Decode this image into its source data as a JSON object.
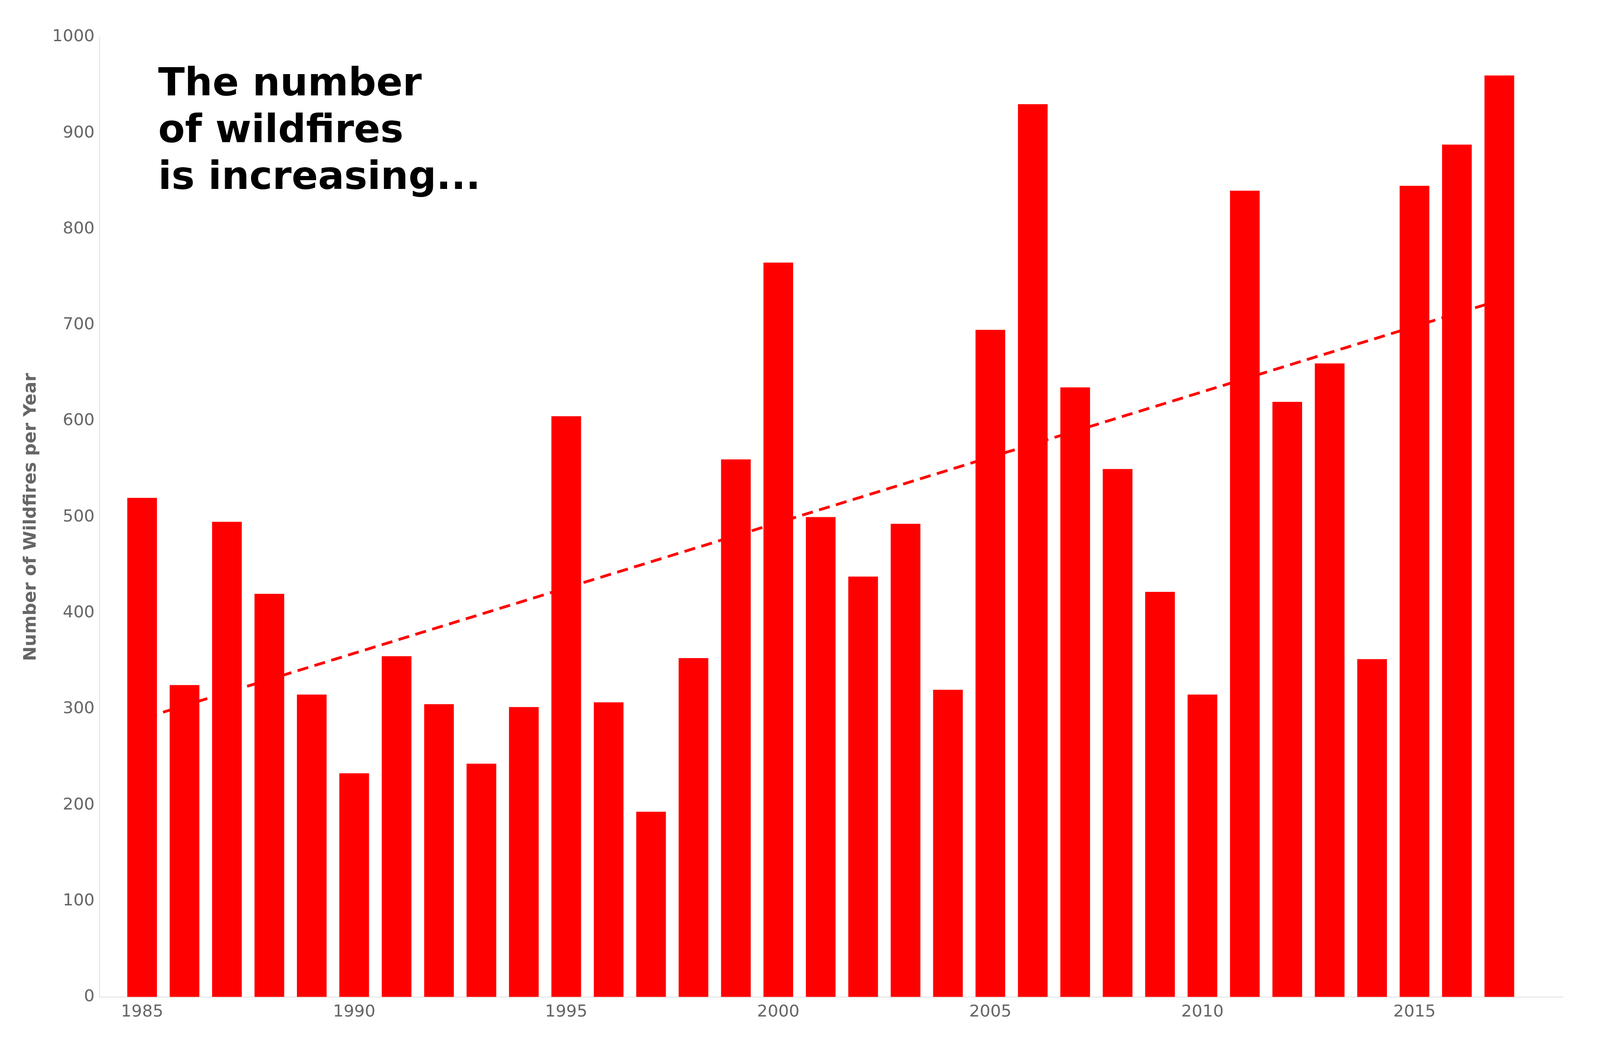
{
  "chart_data": {
    "type": "bar",
    "y_label": "Number of Wildfires per Year",
    "annotations": [
      "The number",
      "of wildfires",
      "is increasing..."
    ],
    "x": [
      1985,
      1986,
      1987,
      1988,
      1989,
      1990,
      1991,
      1992,
      1993,
      1994,
      1995,
      1996,
      1997,
      1998,
      1999,
      2000,
      2001,
      2002,
      2003,
      2004,
      2005,
      2006,
      2007,
      2008,
      2009,
      2010,
      2011,
      2012,
      2013,
      2014,
      2015,
      2016,
      2017
    ],
    "series": [
      {
        "type": "bar",
        "color": "#FF0000",
        "values": [
          520,
          325,
          495,
          420,
          315,
          233,
          355,
          305,
          243,
          302,
          605,
          307,
          193,
          353,
          560,
          765,
          500,
          438,
          493,
          320,
          695,
          930,
          635,
          550,
          422,
          315,
          840,
          620,
          660,
          352,
          845,
          888,
          960
        ]
      },
      {
        "type": "line",
        "color": "#FF0000",
        "line_style": "dashed",
        "x": [
          1984.7,
          2017.3
        ],
        "values": [
          285.85,
          729.84
        ]
      }
    ],
    "xlim": [
      1984.0,
      2018.5
    ],
    "xticks": [
      1985,
      1990,
      1995,
      2000,
      2005,
      2010,
      2015
    ],
    "ylim": [
      0,
      1000
    ],
    "yticks": [
      0,
      100,
      200,
      300,
      400,
      500,
      600,
      700,
      800,
      900,
      1000
    ],
    "grid": false
  }
}
